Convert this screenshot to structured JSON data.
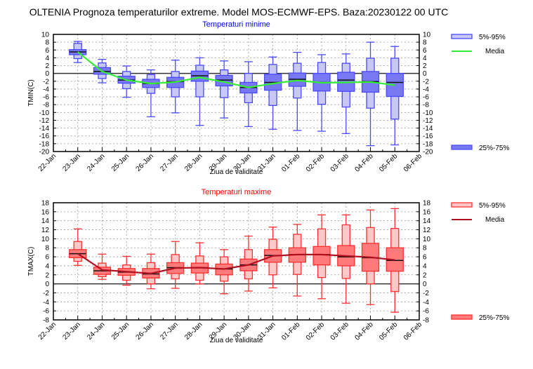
{
  "title": "OLTENIA  Prognoza temperaturilor extreme.  Model MOS-ECMWF-EPS. Baza:20230122 00 UTC",
  "chart_data": [
    {
      "type": "boxplot",
      "title": "Temperaturi minime",
      "title_color": "#0000ff",
      "xlabel": "Ziua de validitate",
      "ylabel": "TMIN(C)",
      "ylim": [
        -20,
        10
      ],
      "yticks": [
        10,
        8,
        6,
        4,
        2,
        0,
        -2,
        -4,
        -6,
        -8,
        -10,
        -12,
        -14,
        -16,
        -18,
        -20
      ],
      "x_tick_labels": [
        "22-Jan",
        "23-Jan",
        "24-Jan",
        "25-Jan",
        "26-Jan",
        "27-Jan",
        "28-Jan",
        "29-Jan",
        "30-Jan",
        "31-Jan",
        "01-Feb",
        "02-Feb",
        "03-Feb",
        "04-Feb",
        "05-Feb",
        "06-Feb"
      ],
      "grid": true,
      "colors": {
        "border": "#4a4aff",
        "light": "#c8c8f4",
        "dark": "#7878f2",
        "mean": "#33ee33"
      },
      "legend": {
        "p5_95": "5%-95%",
        "mean": "Media",
        "p25_75": "25%-75%",
        "placement": "right"
      },
      "series": {
        "categories": [
          "23-Jan",
          "24-Jan",
          "25-Jan",
          "26-Jan",
          "27-Jan",
          "28-Jan",
          "29-Jan",
          "30-Jan",
          "31-Jan",
          "01-Feb",
          "02-Feb",
          "03-Feb",
          "04-Feb",
          "05-Feb"
        ],
        "min": [
          2.8,
          -2.4,
          -6.1,
          -11.1,
          -10.1,
          -13.3,
          -11.4,
          -13.6,
          -14.3,
          -14.6,
          -14.8,
          -15.4,
          -18.5,
          -18.3
        ],
        "p5": [
          3.8,
          -1.3,
          -3.9,
          -5.1,
          -6.0,
          -6.0,
          -6.2,
          -7.5,
          -8.2,
          -6.3,
          -7.9,
          -8.6,
          -8.9,
          -11.7
        ],
        "p25": [
          4.8,
          -0.2,
          -2.5,
          -3.6,
          -3.6,
          -2.0,
          -3.2,
          -5.0,
          -4.3,
          -3.3,
          -4.5,
          -4.6,
          -4.8,
          -5.9
        ],
        "median": [
          5.5,
          0.5,
          -1.7,
          -2.6,
          -2.1,
          -0.6,
          -1.7,
          -3.6,
          -2.3,
          -1.5,
          -2.3,
          -1.7,
          -2.1,
          -2.3
        ],
        "p75": [
          6.1,
          1.5,
          -0.7,
          -1.5,
          -1.0,
          0.6,
          -0.5,
          -2.3,
          -0.2,
          0.1,
          0.0,
          0.3,
          0.5,
          0.0
        ],
        "p95": [
          7.7,
          2.7,
          0.5,
          -0.3,
          0.5,
          2.1,
          0.9,
          0.0,
          2.3,
          2.6,
          2.8,
          2.6,
          3.9,
          3.9
        ],
        "max": [
          8.2,
          3.6,
          1.9,
          0.9,
          3.4,
          4.0,
          3.2,
          3.0,
          4.2,
          5.4,
          4.8,
          5.0,
          8.0,
          6.9
        ],
        "mean": [
          5.5,
          0.5,
          -1.7,
          -2.6,
          -2.2,
          -1.0,
          -2.2,
          -3.6,
          -2.6,
          -1.8,
          -2.4,
          -2.3,
          -2.2,
          -3.0
        ]
      }
    },
    {
      "type": "boxplot",
      "title": "Temperaturi maxime",
      "title_color": "#ff0000",
      "xlabel": "Ziua de validitate",
      "ylabel": "TMAX(C)",
      "ylim": [
        -8,
        18
      ],
      "yticks": [
        18,
        16,
        14,
        12,
        10,
        8,
        6,
        4,
        2,
        0,
        -2,
        -4,
        -6,
        -8
      ],
      "x_tick_labels": [
        "22-Jan",
        "23-Jan",
        "24-Jan",
        "25-Jan",
        "26-Jan",
        "27-Jan",
        "28-Jan",
        "29-Jan",
        "30-Jan",
        "31-Jan",
        "01-Feb",
        "02-Feb",
        "03-Feb",
        "04-Feb",
        "05-Feb",
        "06-Feb"
      ],
      "grid": true,
      "colors": {
        "border": "#ff3030",
        "light": "#ffc8c8",
        "dark": "#ff7a7a",
        "mean": "#b01020"
      },
      "legend": {
        "p5_95": "5%-95%",
        "mean": "Media",
        "p25_75": "25%-75%",
        "placement": "right"
      },
      "series": {
        "categories": [
          "23-Jan",
          "24-Jan",
          "25-Jan",
          "26-Jan",
          "27-Jan",
          "28-Jan",
          "29-Jan",
          "30-Jan",
          "31-Jan",
          "01-Feb",
          "02-Feb",
          "03-Feb",
          "04-Feb",
          "05-Feb"
        ],
        "min": [
          4.1,
          1.0,
          -0.3,
          -1.1,
          -1.0,
          0.0,
          -2.2,
          -1.6,
          -0.9,
          -2.7,
          -3.3,
          -4.3,
          -4.6,
          -6.3
        ],
        "p5": [
          5.0,
          1.6,
          0.8,
          0.0,
          1.1,
          0.8,
          0.6,
          1.1,
          2.0,
          2.1,
          1.4,
          1.2,
          0.0,
          -1.7
        ],
        "p25": [
          5.8,
          2.1,
          1.9,
          1.3,
          2.3,
          2.4,
          2.0,
          2.9,
          4.8,
          4.8,
          4.2,
          4.0,
          2.8,
          2.8
        ],
        "median": [
          6.7,
          2.9,
          2.6,
          2.2,
          3.6,
          3.6,
          3.3,
          4.2,
          6.3,
          6.5,
          6.5,
          6.0,
          5.8,
          5.2
        ],
        "p75": [
          7.6,
          3.7,
          3.4,
          3.4,
          4.7,
          4.6,
          4.4,
          5.5,
          7.6,
          8.0,
          8.3,
          8.5,
          9.0,
          8.0
        ],
        "p95": [
          9.4,
          4.6,
          4.2,
          4.7,
          6.5,
          6.2,
          6.0,
          7.6,
          9.9,
          11.0,
          12.2,
          13.1,
          12.5,
          12.3
        ],
        "max": [
          12.2,
          6.6,
          6.1,
          6.6,
          9.4,
          9.1,
          7.6,
          10.6,
          12.6,
          13.2,
          15.3,
          15.3,
          16.4,
          16.7
        ],
        "mean": [
          6.7,
          3.1,
          2.7,
          2.3,
          3.5,
          3.6,
          3.3,
          4.2,
          6.2,
          6.5,
          6.5,
          6.2,
          5.9,
          5.3
        ]
      }
    }
  ]
}
